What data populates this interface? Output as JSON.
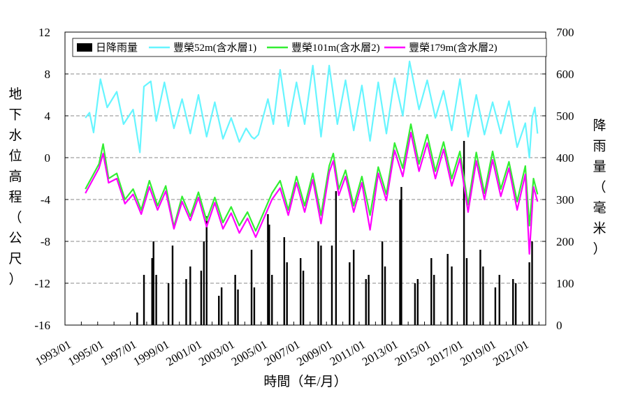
{
  "chart_data": {
    "type": "line",
    "xlabel": "時間（年/月）",
    "ylabel": "地下水位高程（公尺）",
    "y2label": "降雨量（毫米）",
    "x_ticks": [
      "1993/01",
      "1995/01",
      "1997/01",
      "1999/01",
      "2001/01",
      "2003/01",
      "2005/01",
      "2007/01",
      "2009/01",
      "2011/01",
      "2013/01",
      "2015/01",
      "2017/01",
      "2019/01",
      "2021/01"
    ],
    "xlim": [
      "1993/01",
      "2022/06"
    ],
    "ylim": [
      -16,
      12
    ],
    "y_ticks": [
      -16,
      -12,
      -8,
      -4,
      0,
      4,
      8,
      12
    ],
    "y2lim": [
      0,
      700
    ],
    "y2_ticks": [
      0,
      100,
      200,
      300,
      400,
      500,
      600,
      700
    ],
    "grid": "horizontal dashed",
    "legend_position": "top",
    "series": [
      {
        "name": "日降雨量",
        "kind": "bar",
        "axis": "right",
        "color": "#000000",
        "points": [
          [
            "1997/06",
            30
          ],
          [
            "1997/11",
            120
          ],
          [
            "1998/05",
            160
          ],
          [
            "1998/06",
            200
          ],
          [
            "1998/08",
            120
          ],
          [
            "1999/05",
            100
          ],
          [
            "1999/08",
            190
          ],
          [
            "2000/06",
            110
          ],
          [
            "2000/09",
            140
          ],
          [
            "2001/05",
            130
          ],
          [
            "2001/07",
            200
          ],
          [
            "2001/09",
            260
          ],
          [
            "2002/06",
            70
          ],
          [
            "2002/08",
            90
          ],
          [
            "2003/06",
            120
          ],
          [
            "2003/08",
            85
          ],
          [
            "2004/06",
            180
          ],
          [
            "2004/08",
            90
          ],
          [
            "2005/06",
            265
          ],
          [
            "2005/07",
            240
          ],
          [
            "2005/09",
            120
          ],
          [
            "2006/06",
            210
          ],
          [
            "2006/08",
            150
          ],
          [
            "2007/06",
            160
          ],
          [
            "2007/08",
            130
          ],
          [
            "2008/07",
            200
          ],
          [
            "2008/09",
            190
          ],
          [
            "2009/05",
            190
          ],
          [
            "2009/08",
            320
          ],
          [
            "2010/06",
            150
          ],
          [
            "2010/09",
            180
          ],
          [
            "2011/06",
            110
          ],
          [
            "2011/08",
            120
          ],
          [
            "2012/06",
            200
          ],
          [
            "2012/08",
            140
          ],
          [
            "2013/07",
            300
          ],
          [
            "2013/08",
            330
          ],
          [
            "2014/06",
            100
          ],
          [
            "2014/08",
            110
          ],
          [
            "2015/06",
            160
          ],
          [
            "2015/08",
            120
          ],
          [
            "2016/06",
            170
          ],
          [
            "2016/09",
            140
          ],
          [
            "2017/06",
            440
          ],
          [
            "2017/08",
            160
          ],
          [
            "2018/06",
            180
          ],
          [
            "2018/08",
            140
          ],
          [
            "2019/05",
            90
          ],
          [
            "2019/08",
            120
          ],
          [
            "2020/06",
            110
          ],
          [
            "2020/08",
            100
          ],
          [
            "2021/06",
            150
          ],
          [
            "2021/08",
            200
          ]
        ]
      },
      {
        "name": "豐榮52m(含水層1)",
        "kind": "line",
        "axis": "left",
        "color": "#66f5ff",
        "points": [
          [
            "1994/04",
            3.8
          ],
          [
            "1994/07",
            4.3
          ],
          [
            "1994/10",
            2.4
          ],
          [
            "1995/03",
            7.5
          ],
          [
            "1995/08",
            4.8
          ],
          [
            "1996/03",
            6.3
          ],
          [
            "1996/08",
            3.2
          ],
          [
            "1997/03",
            4.6
          ],
          [
            "1997/08",
            0.5
          ],
          [
            "1997/11",
            6.8
          ],
          [
            "1998/04",
            7.3
          ],
          [
            "1998/08",
            3.5
          ],
          [
            "1999/02",
            7.2
          ],
          [
            "1999/09",
            2.8
          ],
          [
            "2000/03",
            5.6
          ],
          [
            "2000/09",
            2.3
          ],
          [
            "2001/03",
            6.0
          ],
          [
            "2001/09",
            2.0
          ],
          [
            "2002/03",
            5.3
          ],
          [
            "2002/09",
            1.8
          ],
          [
            "2003/03",
            3.8
          ],
          [
            "2003/09",
            1.5
          ],
          [
            "2004/02",
            2.8
          ],
          [
            "2004/06",
            2.0
          ],
          [
            "2004/08",
            1.8
          ],
          [
            "2004/11",
            2.2
          ],
          [
            "2005/06",
            5.6
          ],
          [
            "2005/10",
            3.2
          ],
          [
            "2006/03",
            8.4
          ],
          [
            "2006/09",
            3.0
          ],
          [
            "2007/03",
            7.2
          ],
          [
            "2007/09",
            3.2
          ],
          [
            "2008/03",
            8.8
          ],
          [
            "2008/09",
            2.0
          ],
          [
            "2009/03",
            8.8
          ],
          [
            "2009/09",
            3.2
          ],
          [
            "2010/03",
            7.4
          ],
          [
            "2010/09",
            2.6
          ],
          [
            "2011/03",
            6.9
          ],
          [
            "2011/09",
            1.6
          ],
          [
            "2012/03",
            7.2
          ],
          [
            "2012/09",
            2.3
          ],
          [
            "2013/03",
            7.6
          ],
          [
            "2013/09",
            4.0
          ],
          [
            "2014/02",
            9.2
          ],
          [
            "2014/09",
            4.6
          ],
          [
            "2015/03",
            7.4
          ],
          [
            "2015/09",
            3.8
          ],
          [
            "2016/03",
            6.4
          ],
          [
            "2016/09",
            2.6
          ],
          [
            "2017/03",
            7.5
          ],
          [
            "2017/09",
            2.0
          ],
          [
            "2018/03",
            6.0
          ],
          [
            "2018/09",
            2.2
          ],
          [
            "2019/03",
            5.3
          ],
          [
            "2019/09",
            2.3
          ],
          [
            "2020/03",
            5.4
          ],
          [
            "2020/09",
            1.0
          ],
          [
            "2021/03",
            3.3
          ],
          [
            "2021/06",
            0.0
          ],
          [
            "2021/08",
            3.8
          ],
          [
            "2021/10",
            4.8
          ],
          [
            "2021/12",
            2.3
          ]
        ]
      },
      {
        "name": "豐榮101m(含水層2)",
        "kind": "line",
        "axis": "left",
        "color": "#33ee33",
        "points": [
          [
            "1994/04",
            -3.0
          ],
          [
            "1994/09",
            -1.8
          ],
          [
            "1995/02",
            -0.6
          ],
          [
            "1995/05",
            1.3
          ],
          [
            "1995/09",
            -2.0
          ],
          [
            "1996/03",
            -1.5
          ],
          [
            "1996/09",
            -4.0
          ],
          [
            "1997/03",
            -3.0
          ],
          [
            "1997/09",
            -5.0
          ],
          [
            "1998/03",
            -2.2
          ],
          [
            "1998/09",
            -4.6
          ],
          [
            "1999/03",
            -2.7
          ],
          [
            "1999/09",
            -6.6
          ],
          [
            "2000/03",
            -3.7
          ],
          [
            "2000/09",
            -5.6
          ],
          [
            "2001/03",
            -3.3
          ],
          [
            "2001/09",
            -6.0
          ],
          [
            "2002/03",
            -3.8
          ],
          [
            "2002/09",
            -6.2
          ],
          [
            "2003/03",
            -4.7
          ],
          [
            "2003/09",
            -6.5
          ],
          [
            "2004/03",
            -5.2
          ],
          [
            "2004/09",
            -7.0
          ],
          [
            "2005/03",
            -5.2
          ],
          [
            "2005/09",
            -3.4
          ],
          [
            "2006/03",
            -2.2
          ],
          [
            "2006/09",
            -5.0
          ],
          [
            "2007/03",
            -1.8
          ],
          [
            "2007/09",
            -4.6
          ],
          [
            "2008/03",
            -1.5
          ],
          [
            "2008/09",
            -5.5
          ],
          [
            "2009/03",
            -0.8
          ],
          [
            "2009/06",
            0.4
          ],
          [
            "2009/10",
            -3.0
          ],
          [
            "2010/03",
            -1.2
          ],
          [
            "2010/09",
            -4.6
          ],
          [
            "2011/03",
            -1.8
          ],
          [
            "2011/09",
            -5.5
          ],
          [
            "2012/03",
            -0.9
          ],
          [
            "2012/09",
            -3.5
          ],
          [
            "2013/03",
            1.4
          ],
          [
            "2013/09",
            -1.0
          ],
          [
            "2014/03",
            3.2
          ],
          [
            "2014/09",
            -0.6
          ],
          [
            "2015/03",
            2.2
          ],
          [
            "2015/09",
            -1.3
          ],
          [
            "2016/03",
            1.5
          ],
          [
            "2016/09",
            -2.0
          ],
          [
            "2017/03",
            0.6
          ],
          [
            "2017/09",
            -4.5
          ],
          [
            "2018/03",
            0.5
          ],
          [
            "2018/09",
            -3.4
          ],
          [
            "2019/03",
            0.6
          ],
          [
            "2019/09",
            -3.0
          ],
          [
            "2020/03",
            -0.4
          ],
          [
            "2020/09",
            -4.2
          ],
          [
            "2021/03",
            -0.8
          ],
          [
            "2021/06",
            -6.5
          ],
          [
            "2021/09",
            -2.0
          ],
          [
            "2021/12",
            -3.5
          ]
        ]
      },
      {
        "name": "豐榮179m(含水層2)",
        "kind": "line",
        "axis": "left",
        "color": "#ff00ff",
        "points": [
          [
            "1994/04",
            -3.4
          ],
          [
            "1994/09",
            -2.2
          ],
          [
            "1995/02",
            -1.0
          ],
          [
            "1995/05",
            0.4
          ],
          [
            "1995/09",
            -2.4
          ],
          [
            "1996/03",
            -2.0
          ],
          [
            "1996/09",
            -4.4
          ],
          [
            "1997/03",
            -3.5
          ],
          [
            "1997/09",
            -5.4
          ],
          [
            "1998/03",
            -2.8
          ],
          [
            "1998/09",
            -5.0
          ],
          [
            "1999/03",
            -3.2
          ],
          [
            "1999/09",
            -6.8
          ],
          [
            "2000/03",
            -4.2
          ],
          [
            "2000/09",
            -6.0
          ],
          [
            "2001/03",
            -3.8
          ],
          [
            "2001/09",
            -6.6
          ],
          [
            "2002/03",
            -4.3
          ],
          [
            "2002/09",
            -6.8
          ],
          [
            "2003/03",
            -5.3
          ],
          [
            "2003/09",
            -7.2
          ],
          [
            "2004/03",
            -5.8
          ],
          [
            "2004/09",
            -7.6
          ],
          [
            "2005/03",
            -5.8
          ],
          [
            "2005/09",
            -4.0
          ],
          [
            "2006/03",
            -2.9
          ],
          [
            "2006/09",
            -5.5
          ],
          [
            "2007/03",
            -2.4
          ],
          [
            "2007/09",
            -5.2
          ],
          [
            "2008/03",
            -2.1
          ],
          [
            "2008/09",
            -6.3
          ],
          [
            "2009/03",
            -1.4
          ],
          [
            "2009/06",
            -0.3
          ],
          [
            "2009/10",
            -3.6
          ],
          [
            "2010/03",
            -1.8
          ],
          [
            "2010/09",
            -5.2
          ],
          [
            "2011/03",
            -2.4
          ],
          [
            "2011/09",
            -6.9
          ],
          [
            "2012/03",
            -1.5
          ],
          [
            "2012/09",
            -4.1
          ],
          [
            "2013/03",
            0.7
          ],
          [
            "2013/09",
            -1.8
          ],
          [
            "2014/03",
            2.4
          ],
          [
            "2014/09",
            -1.3
          ],
          [
            "2015/03",
            1.4
          ],
          [
            "2015/09",
            -2.0
          ],
          [
            "2016/03",
            0.8
          ],
          [
            "2016/09",
            -2.7
          ],
          [
            "2017/03",
            -0.1
          ],
          [
            "2017/09",
            -5.2
          ],
          [
            "2018/03",
            -0.3
          ],
          [
            "2018/09",
            -4.0
          ],
          [
            "2019/03",
            -0.2
          ],
          [
            "2019/09",
            -3.7
          ],
          [
            "2020/03",
            -1.0
          ],
          [
            "2020/09",
            -5.0
          ],
          [
            "2021/03",
            -1.6
          ],
          [
            "2021/06",
            -9.2
          ],
          [
            "2021/09",
            -2.8
          ],
          [
            "2021/12",
            -4.2
          ]
        ]
      }
    ]
  }
}
